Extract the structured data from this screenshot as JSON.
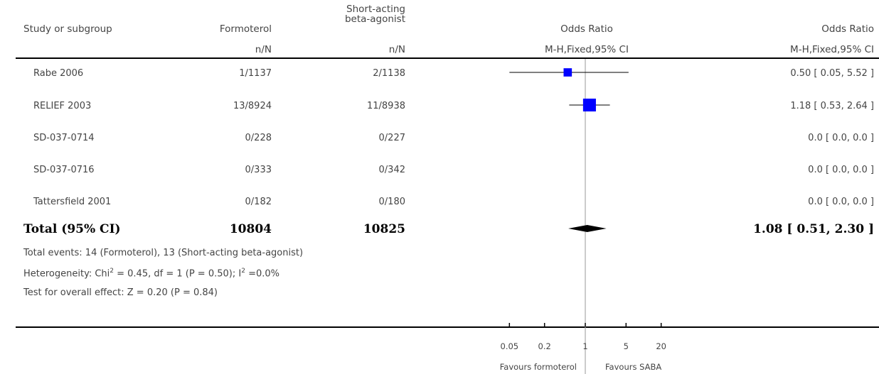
{
  "chart_data": {
    "type": "forest",
    "columns": {
      "study": "Study or subgroup",
      "group1": "Formoterol",
      "group2_line1": "Short-acting",
      "group2_line2": "beta-agonist",
      "plot": "Odds Ratio",
      "result": "Odds Ratio",
      "group1_sub": "n/N",
      "group2_sub": "n/N",
      "plot_sub": "M-H,Fixed,95% CI",
      "result_sub": "M-H,Fixed,95% CI"
    },
    "studies": [
      {
        "name": "Rabe 2006",
        "g1": "1/1137",
        "g2": "2/1138",
        "or": 0.5,
        "lo": 0.05,
        "hi": 5.52,
        "result": "0.50 [ 0.05, 5.52 ]",
        "weight": 0.15
      },
      {
        "name": "RELIEF 2003",
        "g1": "13/8924",
        "g2": "11/8938",
        "or": 1.18,
        "lo": 0.53,
        "hi": 2.64,
        "result": "1.18 [ 0.53, 2.64 ]",
        "weight": 0.85
      },
      {
        "name": "SD-037-0714",
        "g1": "0/228",
        "g2": "0/227",
        "or": null,
        "lo": null,
        "hi": null,
        "result": "0.0 [ 0.0, 0.0 ]",
        "weight": 0
      },
      {
        "name": "SD-037-0716",
        "g1": "0/333",
        "g2": "0/342",
        "or": null,
        "lo": null,
        "hi": null,
        "result": "0.0 [ 0.0, 0.0 ]",
        "weight": 0
      },
      {
        "name": "Tattersfield 2001",
        "g1": "0/182",
        "g2": "0/180",
        "or": null,
        "lo": null,
        "hi": null,
        "result": "0.0 [ 0.0, 0.0 ]",
        "weight": 0
      }
    ],
    "total": {
      "label": "Total (95% CI)",
      "g1": "10804",
      "g2": "10825",
      "or": 1.08,
      "lo": 0.51,
      "hi": 2.3,
      "result": "1.08 [ 0.51, 2.30 ]"
    },
    "footnotes": {
      "events": "Total events: 14 (Formoterol), 13 (Short-acting beta-agonist)",
      "het_a": "Heterogeneity: Chi",
      "het_b": " = 0.45, df = 1 (P = 0.50); I",
      "het_c": " =0.0%",
      "sup": "2",
      "overall": "Test for overall effect: Z = 0.20 (P = 0.84)"
    },
    "axis": {
      "scale": "log",
      "ticks": [
        0.05,
        0.2,
        1,
        5,
        20
      ],
      "tick_labels": [
        "0.05",
        "0.2",
        "1",
        "5",
        "20"
      ],
      "xlim": [
        0.05,
        20
      ],
      "favours_left": "Favours formoterol",
      "favours_right": "Favours SABA"
    },
    "colors": {
      "marker": "#0000ff",
      "line": "#000000",
      "null_line": "#999999"
    }
  }
}
